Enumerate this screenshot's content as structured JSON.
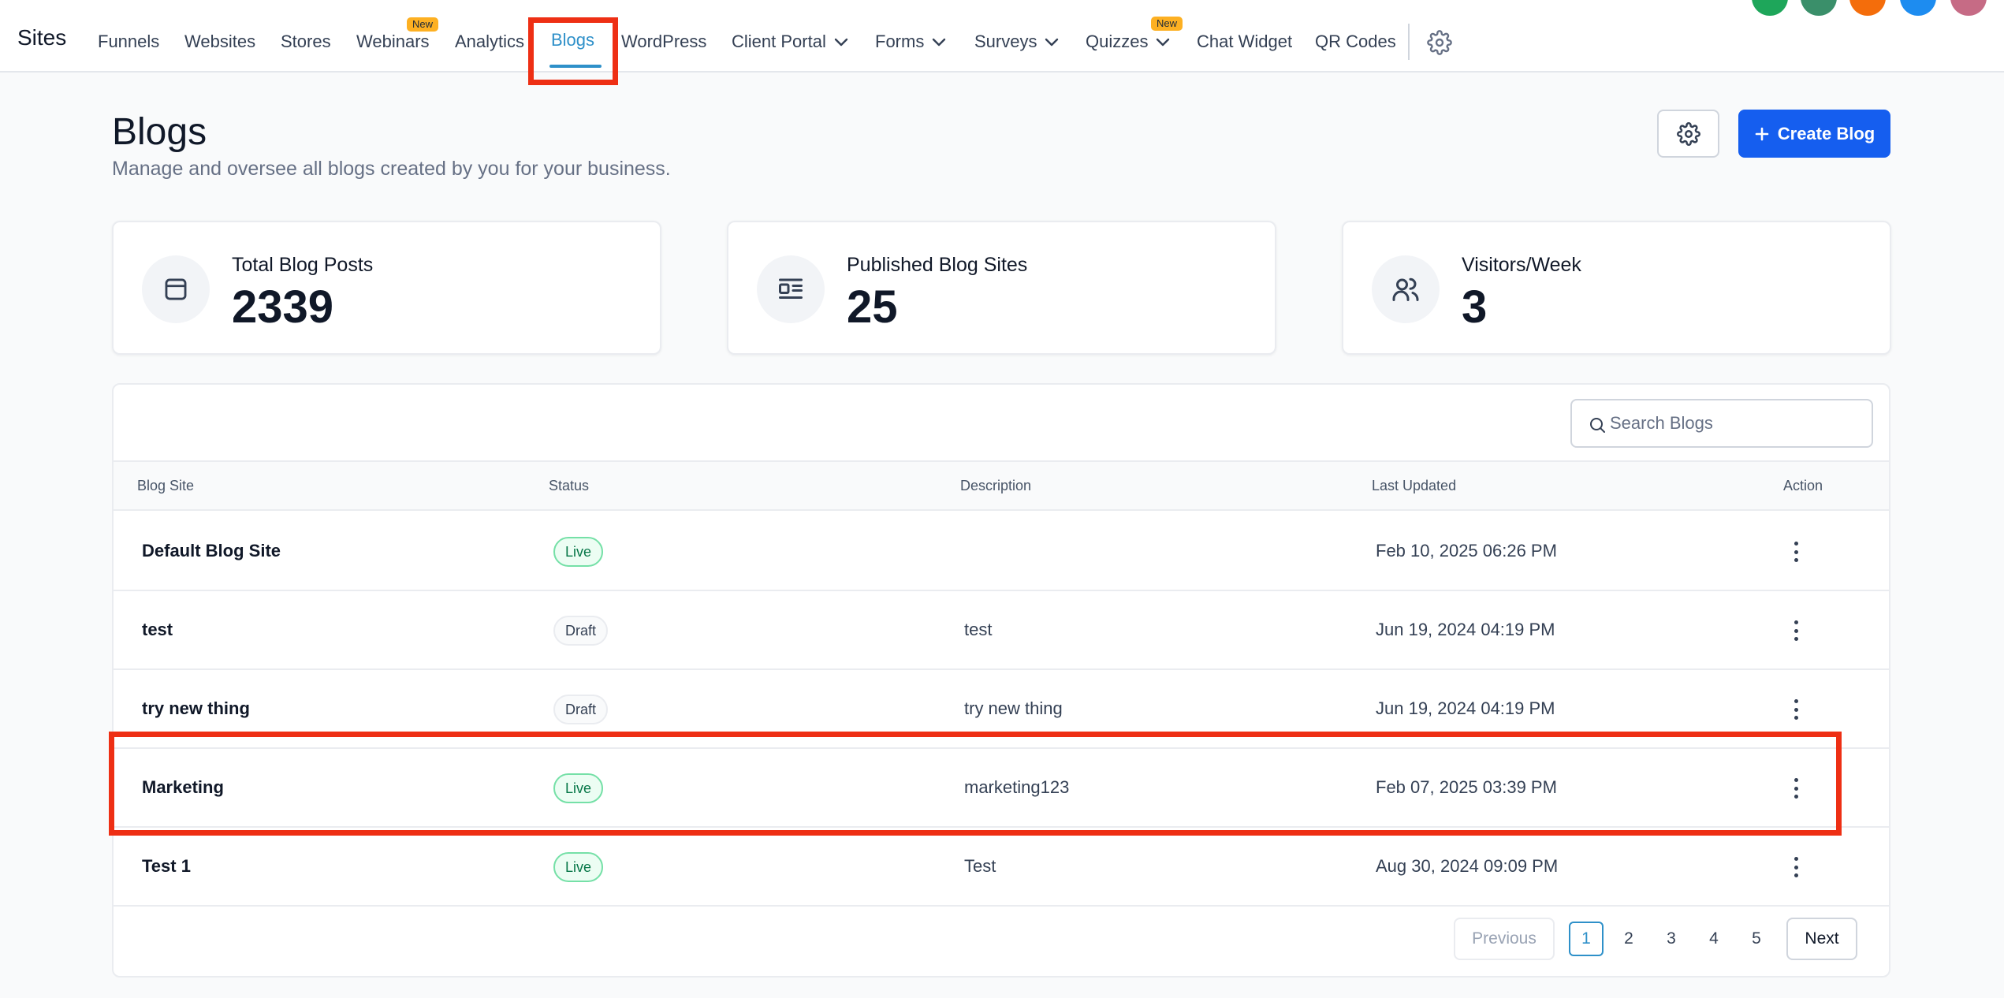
{
  "nav": {
    "brand": "Sites",
    "items": [
      "Funnels",
      "Websites",
      "Stores",
      "Webinars",
      "Analytics",
      "Blogs",
      "WordPress",
      "Client Portal",
      "Forms",
      "Surveys",
      "Quizzes",
      "Chat Widget",
      "QR Codes"
    ],
    "new_badge": "New",
    "active_item": "Blogs",
    "avatar_colors": [
      "#1ea65a",
      "#3a8f6a",
      "#f46d0b",
      "#1d8cf0",
      "#c66b85"
    ]
  },
  "header": {
    "title": "Blogs",
    "subtitle": "Manage and oversee all blogs created by you for your business.",
    "create_label": "Create Blog"
  },
  "stats": [
    {
      "label": "Total Blog Posts",
      "value": "2339",
      "icon": "calendar-icon"
    },
    {
      "label": "Published Blog Sites",
      "value": "25",
      "icon": "article-icon"
    },
    {
      "label": "Visitors/Week",
      "value": "3",
      "icon": "users-icon"
    }
  ],
  "table": {
    "search_placeholder": "Search Blogs",
    "columns": [
      "Blog Site",
      "Status",
      "Description",
      "Last Updated",
      "Action"
    ],
    "rows": [
      {
        "name": "Default Blog Site",
        "status": "Live",
        "description": "",
        "updated": "Feb 10, 2025 06:26 PM"
      },
      {
        "name": "test",
        "status": "Draft",
        "description": "test",
        "updated": "Jun 19, 2024 04:19 PM"
      },
      {
        "name": "try new thing",
        "status": "Draft",
        "description": "try new thing",
        "updated": "Jun 19, 2024 04:19 PM"
      },
      {
        "name": "Marketing",
        "status": "Live",
        "description": "marketing123",
        "updated": "Feb 07, 2025 03:39 PM"
      },
      {
        "name": "Test 1",
        "status": "Live",
        "description": "Test",
        "updated": "Aug 30, 2024 09:09 PM"
      }
    ]
  },
  "pagination": {
    "previous": "Previous",
    "next": "Next",
    "pages": [
      "1",
      "2",
      "3",
      "4",
      "5"
    ],
    "current": "1"
  },
  "colors": {
    "accent": "#2e90c9",
    "primary_button": "#155eef",
    "highlight": "#ee2f14"
  }
}
